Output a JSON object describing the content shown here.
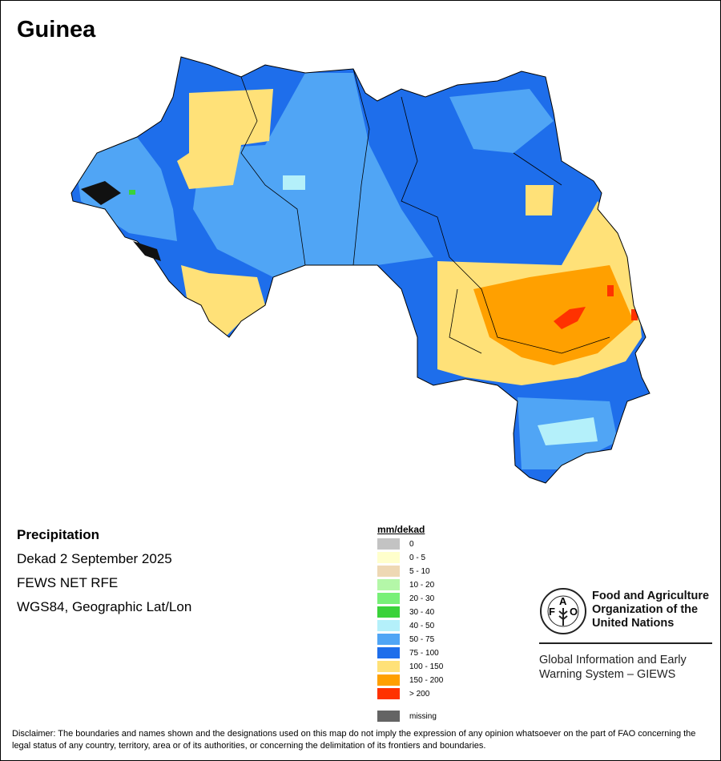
{
  "title": "Guinea",
  "info": {
    "variable": "Precipitation",
    "period": "Dekad 2 September 2025",
    "source": "FEWS NET RFE",
    "projection": "WGS84, Geographic Lat/Lon"
  },
  "legend": {
    "title": "mm/dekad",
    "items": [
      {
        "label": "0",
        "color": "#c3c3c3"
      },
      {
        "label": "0 - 5",
        "color": "#ffffcc"
      },
      {
        "label": "5 - 10",
        "color": "#eed8b4"
      },
      {
        "label": "10 - 20",
        "color": "#b4f7a8"
      },
      {
        "label": "20 - 30",
        "color": "#78f078"
      },
      {
        "label": "30 - 40",
        "color": "#3ad23a"
      },
      {
        "label": "40 - 50",
        "color": "#b4f0fa"
      },
      {
        "label": "50 - 75",
        "color": "#50a5f5"
      },
      {
        "label": "75 - 100",
        "color": "#1e6eeb"
      },
      {
        "label": "100 - 150",
        "color": "#ffe178"
      },
      {
        "label": "150 - 200",
        "color": "#ffa000"
      },
      {
        "label": "> 200",
        "color": "#ff3200"
      }
    ],
    "missing": {
      "label": "missing",
      "color": "#646464"
    }
  },
  "logo": {
    "org_name_line1": "Food and Agriculture",
    "org_name_line2": "Organization of the",
    "org_name_line3": "United Nations",
    "logo_text": "FAO FIAT PANIS",
    "giews_line1": "Global Information and Early",
    "giews_line2": "Warning System – GIEWS"
  },
  "disclaimer": "Disclaimer: The boundaries and names shown and the designations used on this map do not imply the expression of any opinion whatsoever on the part of FAO concerning the legal status of any country, territory, area or of its authorities, or concerning the delimitation of its frontiers and boundaries."
}
